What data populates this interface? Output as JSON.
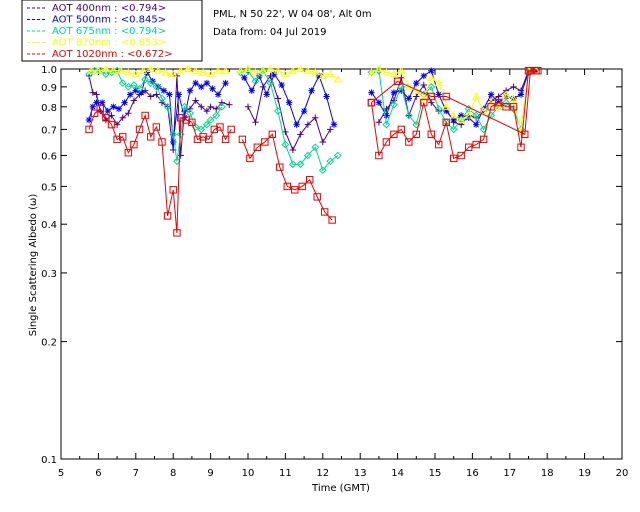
{
  "header": {
    "site": "PML, N 50 22', W 04 08', Alt 0m",
    "date": "Data from: 04 Jul 2019"
  },
  "chart_data": {
    "type": "line",
    "title": "",
    "xlabel": "Time (GMT)",
    "ylabel": "Single Scattering Albedo (ω)",
    "xlim": [
      5,
      20
    ],
    "ylim": [
      0.1,
      1.0
    ],
    "yscale": "log",
    "x_ticks": [
      5,
      6,
      7,
      8,
      9,
      10,
      11,
      12,
      13,
      14,
      15,
      16,
      17,
      18,
      19,
      20
    ],
    "x_tick_labels": [
      "5",
      "6",
      "7",
      "8",
      "9",
      "10",
      "11",
      "12",
      "13",
      "14",
      "15",
      "16",
      "17",
      "18",
      "19",
      "20"
    ],
    "y_ticks": [
      0.1,
      0.2,
      0.3,
      0.4,
      0.5,
      0.6,
      0.7,
      0.8,
      0.9,
      1.0
    ],
    "y_tick_labels": [
      "0.1",
      "0.2",
      "0.3",
      "0.4",
      "0.5",
      "0.6",
      "0.7",
      "0.8",
      "0.9",
      "1.0"
    ],
    "legend_position": "top-left outside",
    "series": [
      {
        "name": "AOT  400nm : <0.794>",
        "color": "#4b0082",
        "marker": "plus",
        "segments": [
          {
            "x": [
              5.75,
              5.85,
              5.95,
              6.05,
              6.2,
              6.35,
              6.5,
              6.65,
              6.8,
              6.95,
              7.1,
              7.25,
              7.4,
              7.55,
              7.7,
              7.85,
              8.0,
              8.1,
              8.2,
              8.3,
              8.45,
              8.6,
              8.75,
              8.9,
              9.0,
              9.15,
              9.3,
              9.5
            ],
            "y": [
              0.96,
              0.87,
              0.86,
              0.78,
              0.74,
              0.76,
              0.72,
              0.75,
              0.77,
              0.83,
              0.86,
              0.88,
              0.85,
              0.86,
              0.82,
              0.8,
              0.62,
              0.96,
              0.6,
              0.78,
              0.79,
              0.83,
              0.8,
              0.78,
              0.8,
              0.79,
              0.82,
              0.81
            ]
          },
          {
            "x": [
              10.0,
              10.2,
              10.4,
              10.6,
              10.8,
              11.0,
              11.2,
              11.4,
              11.6,
              11.8,
              12.0,
              12.2
            ],
            "y": [
              0.8,
              0.73,
              0.9,
              0.96,
              0.84,
              0.69,
              0.62,
              0.68,
              0.72,
              0.75,
              0.65,
              0.7
            ]
          },
          {
            "x": [
              13.5,
              13.7,
              13.9,
              14.1,
              14.3,
              14.5,
              14.7,
              14.9,
              15.1,
              15.3,
              15.5,
              15.7,
              15.9,
              16.1,
              16.3,
              16.5,
              16.7,
              16.9,
              17.1,
              17.3,
              17.5,
              17.7
            ],
            "y": [
              0.73,
              0.79,
              0.83,
              0.95,
              0.76,
              0.85,
              0.91,
              0.82,
              0.78,
              0.79,
              0.73,
              0.72,
              0.76,
              0.75,
              0.78,
              0.83,
              0.85,
              0.88,
              0.9,
              0.88,
              0.99,
              0.99
            ]
          }
        ]
      },
      {
        "name": "AOT  500nm : <0.845>",
        "color": "#0000ff",
        "marker": "asterisk",
        "segments": [
          {
            "x": [
              5.75,
              5.85,
              5.95,
              6.1,
              6.25,
              6.4,
              6.55,
              6.7,
              6.85,
              7.0,
              7.15,
              7.3,
              7.45,
              7.6,
              7.75,
              7.9,
              8.0,
              8.15,
              8.3,
              8.45,
              8.6,
              8.75,
              8.9,
              9.05,
              9.2,
              9.4
            ],
            "y": [
              0.74,
              0.8,
              0.82,
              0.82,
              0.78,
              0.8,
              0.79,
              0.82,
              0.86,
              0.88,
              0.87,
              0.98,
              0.93,
              0.9,
              0.88,
              0.86,
              0.65,
              0.86,
              0.75,
              0.88,
              0.92,
              0.9,
              0.92,
              0.89,
              0.86,
              0.92
            ]
          },
          {
            "x": [
              9.9,
              10.1,
              10.3,
              10.5,
              10.7,
              10.9,
              11.1,
              11.3,
              11.5,
              11.7,
              11.9,
              12.1,
              12.3
            ],
            "y": [
              0.95,
              0.88,
              0.96,
              0.86,
              0.97,
              0.91,
              0.82,
              0.72,
              0.78,
              0.88,
              0.96,
              0.85,
              0.72
            ]
          },
          {
            "x": [
              13.3,
              13.5,
              13.7,
              13.9,
              14.1,
              14.3,
              14.5,
              14.7,
              14.9,
              15.1,
              15.3,
              15.5,
              15.7,
              15.9,
              16.1,
              16.3,
              16.5,
              16.7,
              16.9,
              17.1,
              17.3,
              17.5,
              17.7
            ],
            "y": [
              0.87,
              0.82,
              0.76,
              0.87,
              0.88,
              0.84,
              0.92,
              0.96,
              0.99,
              0.86,
              0.78,
              0.74,
              0.76,
              0.75,
              0.72,
              0.79,
              0.86,
              0.82,
              0.85,
              0.84,
              0.86,
              0.98,
              0.99
            ]
          }
        ]
      },
      {
        "name": "AOT  675nm : <0.794>",
        "color": "#00d890",
        "marker": "diamond",
        "segments": [
          {
            "x": [
              5.75,
              5.9,
              6.05,
              6.2,
              6.35,
              6.5,
              6.65,
              6.8,
              6.95,
              7.1,
              7.25,
              7.4,
              7.55,
              7.7,
              7.85,
              8.0,
              8.1,
              8.2,
              8.3,
              8.45,
              8.6,
              8.75,
              8.9,
              9.0,
              9.15,
              9.3
            ],
            "y": [
              0.97,
              0.99,
              0.99,
              0.97,
              0.98,
              0.99,
              0.92,
              0.9,
              0.91,
              0.89,
              0.94,
              0.92,
              0.9,
              0.84,
              0.8,
              0.68,
              0.58,
              0.68,
              0.8,
              0.77,
              0.71,
              0.7,
              0.72,
              0.74,
              0.76,
              0.8
            ]
          },
          {
            "x": [
              9.8,
              10.0,
              10.2,
              10.4,
              10.6,
              10.8,
              11.0,
              11.2,
              11.4,
              11.6,
              11.8,
              12.0,
              12.2,
              12.4
            ],
            "y": [
              0.98,
              0.99,
              0.93,
              0.99,
              0.92,
              0.78,
              0.64,
              0.57,
              0.57,
              0.6,
              0.63,
              0.55,
              0.58,
              0.6
            ]
          },
          {
            "x": [
              13.3,
              13.5,
              13.7,
              13.9,
              14.1,
              14.3,
              14.5,
              14.7,
              14.9,
              15.1,
              15.3,
              15.5,
              15.7,
              15.9,
              16.1,
              16.3,
              16.5,
              16.7,
              16.9,
              17.1,
              17.3,
              17.5,
              17.7
            ],
            "y": [
              0.98,
              0.99,
              0.72,
              0.81,
              0.9,
              0.76,
              0.72,
              0.86,
              0.9,
              0.79,
              0.73,
              0.7,
              0.74,
              0.79,
              0.76,
              0.7,
              0.76,
              0.8,
              0.82,
              0.79,
              0.7,
              0.98,
              0.99
            ]
          }
        ]
      },
      {
        "name": "AOT  870nm : <0.853>",
        "color": "#ffff00",
        "marker": "triangle",
        "segments": [
          {
            "x": [
              5.8,
              6.0,
              6.2,
              6.4,
              6.6,
              6.8,
              7.0,
              7.2,
              7.4,
              7.6,
              7.8,
              8.0,
              8.2,
              8.4,
              8.6,
              8.8,
              9.0,
              9.2,
              9.4
            ],
            "y": [
              0.99,
              0.99,
              1.0,
              0.99,
              0.99,
              0.98,
              0.97,
              0.99,
              1.0,
              0.99,
              0.98,
              0.97,
              0.99,
              1.0,
              0.99,
              0.98,
              0.97,
              0.99,
              0.99
            ]
          },
          {
            "x": [
              9.8,
              10.0,
              10.2,
              10.4,
              10.6,
              10.8,
              11.0,
              11.2,
              11.4,
              11.6,
              11.8,
              12.0,
              12.2,
              12.4
            ],
            "y": [
              0.99,
              1.0,
              0.98,
              0.99,
              1.0,
              0.99,
              0.97,
              0.99,
              1.0,
              0.99,
              0.98,
              0.96,
              0.97,
              0.94
            ]
          },
          {
            "x": [
              13.3,
              13.5,
              13.7,
              13.9,
              14.1,
              14.3,
              14.5,
              14.7,
              14.9,
              15.1,
              15.3,
              15.5,
              15.7,
              15.9,
              16.1,
              16.3,
              16.5,
              16.7,
              16.9,
              17.1,
              17.3,
              17.5,
              17.7
            ],
            "y": [
              0.98,
              1.0,
              0.98,
              0.97,
              0.99,
              0.9,
              0.88,
              0.84,
              0.95,
              0.92,
              0.8,
              0.76,
              0.74,
              0.76,
              0.85,
              0.78,
              0.82,
              0.8,
              0.86,
              0.84,
              0.69,
              0.99,
              0.99
            ]
          }
        ]
      },
      {
        "name": "AOT 1020nm : <0.672>",
        "color": "#ee0000",
        "marker": "square",
        "segments": [
          {
            "x": [
              5.75,
              5.9,
              6.05,
              6.2,
              6.35,
              6.5,
              6.65,
              6.8,
              6.95,
              7.1,
              7.25,
              7.4,
              7.55,
              7.7,
              7.85,
              8.0,
              8.1,
              8.2,
              8.35,
              8.5,
              8.65,
              8.8,
              8.95,
              9.1,
              9.25,
              9.4,
              9.55
            ],
            "y": [
              0.7,
              0.77,
              0.79,
              0.75,
              0.72,
              0.66,
              0.67,
              0.61,
              0.64,
              0.7,
              0.76,
              0.67,
              0.71,
              0.65,
              0.42,
              0.49,
              0.38,
              0.75,
              0.74,
              0.73,
              0.66,
              0.67,
              0.66,
              0.7,
              0.71,
              0.66,
              0.7
            ]
          },
          {
            "x": [
              9.85,
              10.05,
              10.25,
              10.45,
              10.65,
              10.85,
              11.05,
              11.25,
              11.45,
              11.65,
              11.85,
              12.05,
              12.25
            ],
            "y": [
              0.66,
              0.59,
              0.63,
              0.65,
              0.68,
              0.56,
              0.5,
              0.49,
              0.5,
              0.52,
              0.47,
              0.43,
              0.41
            ]
          },
          {
            "x": [
              13.3,
              13.5,
              13.7,
              13.9,
              14.1,
              14.3,
              14.5,
              14.7,
              14.9,
              15.1,
              15.3,
              15.5,
              15.7,
              15.9,
              16.1,
              16.3,
              16.5,
              16.7,
              16.9,
              17.1,
              17.3,
              17.5,
              17.7
            ],
            "y": [
              0.82,
              0.6,
              0.65,
              0.68,
              0.7,
              0.65,
              0.68,
              0.82,
              0.68,
              0.64,
              0.73,
              0.59,
              0.6,
              0.63,
              0.64,
              0.66,
              0.8,
              0.82,
              0.8,
              0.8,
              0.63,
              0.99,
              0.99
            ]
          },
          {
            "x": [
              13.3,
              14.0,
              14.9,
              15.3,
              17.4,
              17.55,
              17.75
            ],
            "y": [
              0.82,
              0.93,
              0.85,
              0.85,
              0.68,
              0.99,
              0.99
            ]
          }
        ]
      }
    ]
  }
}
